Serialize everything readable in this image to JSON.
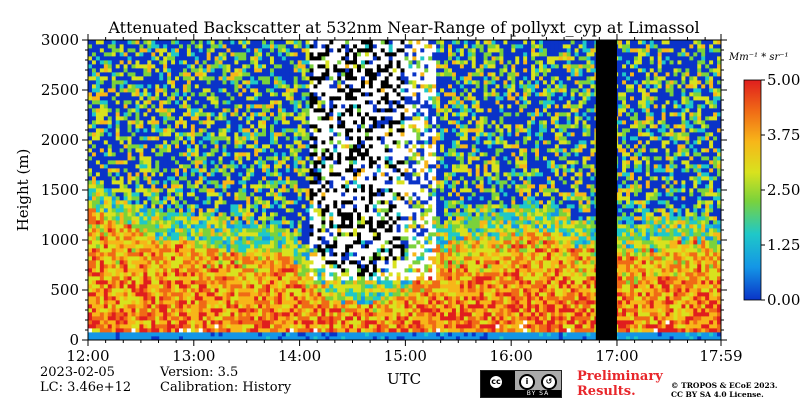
{
  "chart_data": {
    "type": "heatmap",
    "title": "Attenuated Backscatter at 532nm Near-Range of pollyxt_cyp at Limassol",
    "xlabel": "UTC",
    "ylabel": "Height (m)",
    "x_ticks": [
      "12:00",
      "13:00",
      "14:00",
      "15:00",
      "16:00",
      "17:00",
      "17:59"
    ],
    "x_range": [
      "12:00",
      "17:59"
    ],
    "y_ticks": [
      0,
      500,
      1000,
      1500,
      2000,
      2500,
      3000
    ],
    "ylim": [
      0,
      3000
    ],
    "colorbar": {
      "unit_label": "Mm⁻¹ * sr⁻¹",
      "ticks": [
        "0.00",
        "1.25",
        "2.50",
        "3.75",
        "5.00"
      ],
      "range": [
        0,
        5
      ],
      "colormap": [
        "#0a33c8",
        "#1496e6",
        "#1fc8c8",
        "#7ad23c",
        "#d8e21e",
        "#f7b619",
        "#f06a16",
        "#e01e1e"
      ]
    },
    "layers": {
      "surface_band_m": [
        0,
        100
      ],
      "aerosol_layer_top_m": [
        1300,
        1150,
        1050,
        1000,
        950,
        900,
        850,
        600,
        400,
        350,
        500,
        900,
        1000,
        1050,
        1100,
        1000,
        900,
        850,
        950,
        1000,
        900
      ],
      "signal_gap_utc": [
        "16:48",
        "17:00"
      ]
    }
  },
  "footer": {
    "date": "2023-02-05",
    "lc": "LC: 3.46e+12",
    "version": "Version: 3.5",
    "calibration": "Calibration: History",
    "prelim_line1": "Preliminary",
    "prelim_line2": "Results.",
    "copyright_line1": "© TROPOS & ECoE 2023.",
    "copyright_line2": "CC BY SA 4.0 License.",
    "cc_badge": "BY SA"
  }
}
